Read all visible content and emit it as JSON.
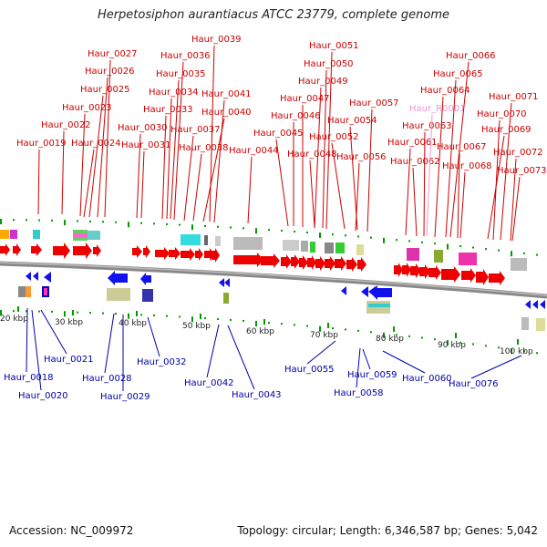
{
  "title": "Herpetosiphon aurantiacus ATCC 23779, complete genome",
  "footer": {
    "accession": "Accession: NC_009972",
    "summary": "Topology: circular; Length: 6,346,587 bp; Genes: 5,042"
  },
  "colors": {
    "forward_label": "#cc0000",
    "reverse_label": "#0000aa",
    "rna_label": "#ee99cc",
    "backbone": "#888888",
    "tick": "#009900"
  },
  "scale_ticks": [
    "20 kbp",
    "30 kbp",
    "40 kbp",
    "50 kbp",
    "60 kbp",
    "70 kbp",
    "80 kbp",
    "90 kbp",
    "100 kbp"
  ],
  "top_labels": [
    "Haur_0019",
    "Haur_0022",
    "Haur_0023",
    "Haur_0024",
    "Haur_0025",
    "Haur_0026",
    "Haur_0027",
    "Haur_0030",
    "Haur_0031",
    "Haur_0033",
    "Haur_0034",
    "Haur_0035",
    "Haur_0036",
    "Haur_0037",
    "Haur_0038",
    "Haur_0039",
    "Haur_0040",
    "Haur_0041",
    "Haur_0044",
    "Haur_0045",
    "Haur_0046",
    "Haur_0047",
    "Haur_0048",
    "Haur_0049",
    "Haur_0050",
    "Haur_0051",
    "Haur_0052",
    "Haur_0054",
    "Haur_0056",
    "Haur_0057",
    "Haur_0061",
    "Haur_0062",
    "Haur_0063",
    "Haur_R0001",
    "Haur_0064",
    "Haur_0065",
    "Haur_0066",
    "Haur_0067",
    "Haur_0068",
    "Haur_0069",
    "Haur_0070",
    "Haur_0071",
    "Haur_0072",
    "Haur_0073"
  ],
  "bottom_labels": [
    "Haur_0018",
    "Haur_0020",
    "Haur_0021",
    "Haur_0028",
    "Haur_0029",
    "Haur_0032",
    "Haur_0042",
    "Haur_0043",
    "Haur_0055",
    "Haur_0058",
    "Haur_0059",
    "Haur_0060",
    "Haur_0076"
  ]
}
